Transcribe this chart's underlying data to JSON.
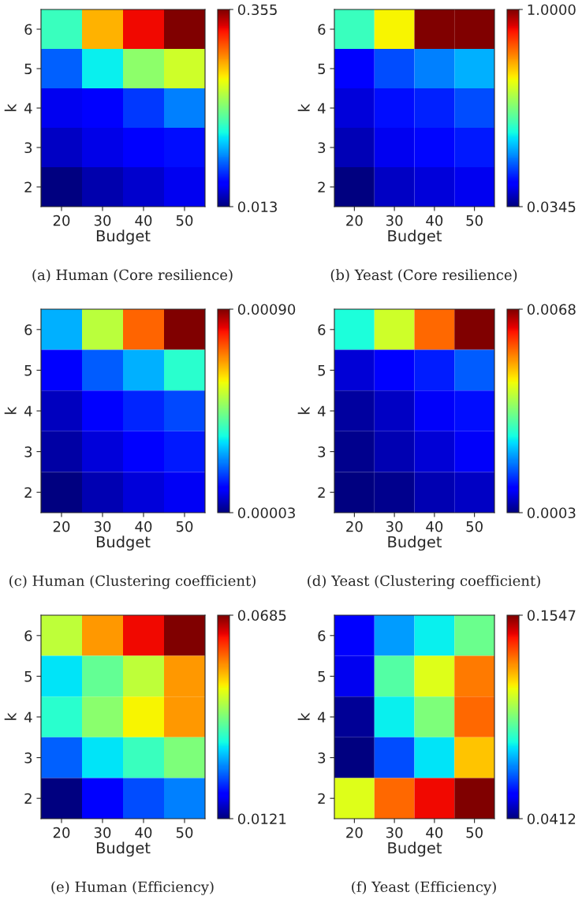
{
  "chart_data": [
    {
      "type": "heatmap",
      "title": "(a) Human (Core resilience)",
      "xlabel": "Budget",
      "ylabel": "k",
      "categories": [
        "20",
        "30",
        "40",
        "50"
      ],
      "y_categories": [
        "6",
        "5",
        "4",
        "3",
        "2"
      ],
      "cells": [
        [
          0.157,
          0.259,
          0.321,
          0.355
        ],
        [
          0.088,
          0.136,
          0.191,
          0.218
        ],
        [
          0.047,
          0.057,
          0.075,
          0.099
        ],
        [
          0.034,
          0.044,
          0.054,
          0.061
        ],
        [
          0.013,
          0.027,
          0.037,
          0.047
        ]
      ],
      "clim": [
        0.013,
        0.355
      ],
      "cticks": [
        0.013,
        0.355
      ]
    },
    {
      "type": "heatmap",
      "title": "(b) Yeast (Core resilience)",
      "xlabel": "Budget",
      "ylabel": "k",
      "categories": [
        "20",
        "30",
        "40",
        "50"
      ],
      "y_categories": [
        "6",
        "5",
        "4",
        "3",
        "2"
      ],
      "cells": [
        [
          0.44,
          0.662,
          1.0,
          1.0
        ],
        [
          0.15,
          0.228,
          0.276,
          0.324
        ],
        [
          0.112,
          0.17,
          0.189,
          0.228
        ],
        [
          0.083,
          0.131,
          0.16,
          0.179
        ],
        [
          0.035,
          0.092,
          0.112,
          0.131
        ]
      ],
      "clim": [
        0.0345,
        1.0
      ],
      "cticks": [
        0.0345,
        {
          "value": 1.0,
          "label": "1.0000"
        }
      ]
    },
    {
      "type": "heatmap",
      "title": "(c) Human (Clustering coefficient)",
      "xlabel": "Budget",
      "ylabel": "k",
      "categories": [
        "20",
        "30",
        "40",
        "50"
      ],
      "y_categories": [
        "6",
        "5",
        "4",
        "3",
        "2"
      ],
      "cells": [
        [
          0.00029,
          0.00053,
          0.00073,
          0.0009
        ],
        [
          0.00013,
          0.00022,
          0.00029,
          0.00038
        ],
        [
          8e-05,
          0.00013,
          0.00017,
          0.0002
        ],
        [
          6e-05,
          0.0001,
          0.00013,
          0.00016
        ],
        [
          3e-05,
          7e-05,
          0.0001,
          0.00012
        ]
      ],
      "clim": [
        3e-05,
        0.0009
      ],
      "cticks": [
        {
          "value": 3e-05,
          "label": "0.00003"
        },
        {
          "value": 0.0009,
          "label": "0.00090"
        }
      ]
    },
    {
      "type": "heatmap",
      "title": "(d) Yeast (Clustering coefficient)",
      "xlabel": "Budget",
      "ylabel": "k",
      "categories": [
        "20",
        "30",
        "40",
        "50"
      ],
      "y_categories": [
        "6",
        "5",
        "4",
        "3",
        "2"
      ],
      "cells": [
        [
          0.0028,
          0.0042,
          0.0055,
          0.0068
        ],
        [
          0.0008,
          0.0011,
          0.0013,
          0.0017
        ],
        [
          0.0005,
          0.0007,
          0.001,
          0.0012
        ],
        [
          0.0004,
          0.0006,
          0.0008,
          0.001
        ],
        [
          0.0003,
          0.0004,
          0.0006,
          0.0007
        ]
      ],
      "clim": [
        0.0003,
        0.0068
      ],
      "cticks": [
        0.0003,
        0.0068
      ]
    },
    {
      "type": "heatmap",
      "title": "(e) Human (Efficiency)",
      "xlabel": "Budget",
      "ylabel": "k",
      "categories": [
        "20",
        "30",
        "40",
        "50"
      ],
      "y_categories": [
        "6",
        "5",
        "4",
        "3",
        "2"
      ],
      "cells": [
        [
          0.0448,
          0.0544,
          0.0629,
          0.0685
        ],
        [
          0.0318,
          0.0386,
          0.0448,
          0.0544
        ],
        [
          0.0347,
          0.0414,
          0.0488,
          0.0544
        ],
        [
          0.0245,
          0.0318,
          0.0358,
          0.0403
        ],
        [
          0.0121,
          0.0189,
          0.0234,
          0.0262
        ]
      ],
      "clim": [
        0.0121,
        0.0685
      ],
      "cticks": [
        0.0121,
        0.0685
      ]
    },
    {
      "type": "heatmap",
      "title": "(f) Yeast (Efficiency)",
      "xlabel": "Budget",
      "ylabel": "k",
      "categories": [
        "20",
        "30",
        "40",
        "50"
      ],
      "y_categories": [
        "6",
        "5",
        "4",
        "3",
        "2"
      ],
      "cells": [
        [
          0.0548,
          0.073,
          0.0821,
          0.0957
        ],
        [
          0.0526,
          0.0923,
          0.1116,
          0.1297
        ],
        [
          0.0435,
          0.0821,
          0.098,
          0.132
        ],
        [
          0.0412,
          0.0639,
          0.0809,
          0.1207
        ],
        [
          0.1116,
          0.132,
          0.1434,
          0.1547
        ]
      ],
      "clim": [
        0.0412,
        0.1547
      ],
      "cticks": [
        0.0412,
        0.1547
      ]
    }
  ]
}
